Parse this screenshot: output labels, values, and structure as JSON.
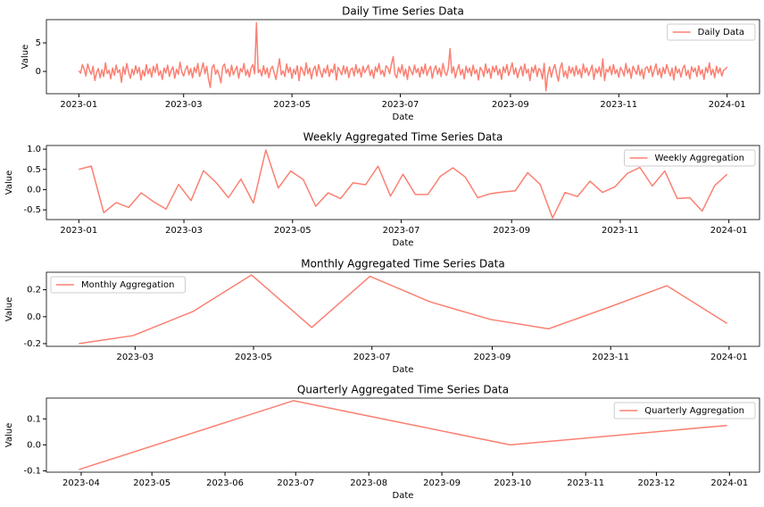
{
  "chart_data": [
    {
      "type": "line",
      "title": "Daily Time Series Data",
      "xlabel": "Date",
      "ylabel": "Value",
      "step": "day",
      "start": "2023-01",
      "xticks": [
        "2023-01",
        "2023-03",
        "2023-05",
        "2023-07",
        "2023-09",
        "2023-11",
        "2024-01"
      ],
      "ylim": [
        -3.9,
        9.06
      ],
      "yticks": [
        0,
        5
      ],
      "legend": "upper right",
      "series": [
        {
          "name": "Daily Data",
          "color": "#fa8072",
          "values": [
            0.1,
            -0.3,
            1.2,
            0.4,
            -0.8,
            1.3,
            0.2,
            -0.5,
            0.9,
            -1.6,
            -0.2,
            0.5,
            -1.1,
            0.3,
            -0.9,
            1.5,
            -0.4,
            0.2,
            -1.3,
            0.6,
            -0.7,
            1.1,
            -0.2,
            0.3,
            -1.9,
            0.8,
            -0.5,
            1.4,
            -0.1,
            -1.2,
            0.4,
            -0.6,
            1.0,
            -0.3,
            0.7,
            -1.5,
            0.2,
            -0.8,
            1.2,
            -0.4,
            0.5,
            -1.0,
            0.9,
            -0.2,
            1.3,
            -0.7,
            0.1,
            -1.4,
            0.6,
            -0.3,
            1.1,
            -0.9,
            0.2,
            0.8,
            -1.2,
            0.4,
            -0.5,
            1.6,
            -0.1,
            -0.8,
            0.3,
            1.0,
            -0.6,
            0.5,
            -1.1,
            0.7,
            -0.2,
            1.4,
            -0.9,
            0.2,
            1.5,
            -0.4,
            0.9,
            -1.3,
            -2.8,
            0.6,
            1.2,
            -0.5,
            0.3,
            -0.7,
            -2.0,
            0.8,
            1.3,
            -0.3,
            0.4,
            -0.9,
            1.1,
            -0.6,
            0.2,
            0.9,
            -1.2,
            0.5,
            -0.1,
            1.4,
            -0.7,
            0.3,
            -1.0,
            0.6,
            1.2,
            -0.4,
            8.5,
            -0.2,
            0.3,
            -0.8,
            1.0,
            -0.5,
            0.6,
            -1.1,
            0.4,
            0.9,
            -0.3,
            -1.4,
            0.5,
            2.2,
            -0.6,
            0.1,
            -0.9,
            1.3,
            -0.2,
            0.7,
            -1.2,
            0.4,
            -0.5,
            1.0,
            -1.6,
            0.8,
            0.2,
            -0.7,
            1.5,
            -0.4,
            0.6,
            -1.3,
            0.3,
            0.9,
            -0.8,
            1.2,
            -0.1,
            -1.0,
            0.5,
            -0.3,
            1.1,
            -0.9,
            0.4,
            -0.2,
            1.3,
            -1.5,
            0.7,
            0.1,
            -0.6,
            1.0,
            -0.4,
            0.8,
            -1.1,
            0.3,
            0.6,
            -0.8,
            1.2,
            -0.3,
            0.5,
            -1.0,
            0.9,
            -0.2,
            0.4,
            1.1,
            -0.7,
            0.3,
            -1.2,
            0.8,
            -0.1,
            1.4,
            -0.5,
            0.2,
            -0.9,
            1.0,
            0.6,
            -0.4,
            1.3,
            2.6,
            -0.6,
            -1.1,
            0.7,
            -0.3,
            1.2,
            -0.8,
            0.4,
            -1.4,
            0.9,
            0.1,
            -0.6,
            1.1,
            -0.2,
            0.5,
            -1.0,
            0.8,
            -0.4,
            1.3,
            -0.7,
            0.2,
            0.9,
            -1.2,
            0.3,
            1.0,
            -0.5,
            0.6,
            -0.9,
            1.4,
            -0.1,
            -0.7,
            0.5,
            4.0,
            -0.3,
            0.8,
            -1.1,
            0.2,
            1.2,
            -0.6,
            0.4,
            -1.3,
            0.9,
            -0.2,
            0.6,
            -0.8,
            1.1,
            -0.4,
            0.3,
            -1.5,
            0.7,
            0.2,
            -0.9,
            1.3,
            -0.3,
            0.5,
            -1.2,
            0.9,
            -0.1,
            1.0,
            -0.6,
            0.4,
            -1.4,
            0.8,
            -0.2,
            1.2,
            -0.7,
            0.3,
            1.5,
            -0.5,
            0.6,
            -1.1,
            0.1,
            0.9,
            -0.8,
            1.3,
            -0.3,
            0.4,
            -1.6,
            0.7,
            -0.2,
            1.1,
            -0.9,
            0.5,
            0.2,
            -1.3,
            1.4,
            -3.4,
            -0.6,
            0.8,
            -1.0,
            0.3,
            1.2,
            -0.4,
            -1.7,
            0.6,
            1.5,
            -0.9,
            0.1,
            -1.2,
            0.9,
            -0.3,
            0.7,
            -0.8,
            1.0,
            -0.5,
            0.4,
            -1.1,
            1.3,
            -0.2,
            0.6,
            -0.7,
            0.2,
            1.1,
            -1.4,
            0.5,
            -0.3,
            0.8,
            -0.9,
            2.2,
            -1.6,
            0.4,
            -0.1,
            0.9,
            -0.6,
            1.2,
            -0.4,
            0.3,
            -1.0,
            0.7,
            0.1,
            -0.8,
            1.4,
            -0.3,
            0.5,
            -1.2,
            0.9,
            0.2,
            -0.5,
            1.1,
            -0.7,
            0.4,
            -1.3,
            0.6,
            0.8,
            -0.2,
            1.0,
            -0.9,
            0.3,
            1.3,
            -0.6,
            0.5,
            -1.1,
            0.7,
            -0.4,
            1.2,
            0.1,
            -0.8,
            0.6,
            -1.5,
            0.9,
            -0.3,
            0.4,
            -1.0,
            0.5,
            1.1,
            -0.7,
            0.2,
            -1.3,
            0.8,
            -0.1,
            0.6,
            -0.9,
            1.0,
            -0.5,
            0.3,
            -1.4,
            0.7,
            -0.2,
            1.5,
            -0.6,
            0.4,
            -1.1,
            0.9,
            -0.3,
            0.6,
            -0.8,
            0.2,
            0.4,
            0.8
          ]
        }
      ]
    },
    {
      "type": "line",
      "title": "Weekly Aggregated Time Series Data",
      "xlabel": "Date",
      "ylabel": "Value",
      "step": "week",
      "start": "2023-01",
      "xticks": [
        "2023-01",
        "2023-03",
        "2023-05",
        "2023-07",
        "2023-09",
        "2023-11",
        "2024-01"
      ],
      "ylim": [
        -0.74,
        1.09
      ],
      "yticks": [
        -0.5,
        {
          "value": 0,
          "label": "0.0"
        },
        0.5,
        {
          "value": 1,
          "label": "1.0"
        }
      ],
      "legend": "upper right",
      "series": [
        {
          "name": "Weekly Aggregation",
          "color": "#fa8072",
          "values": [
            0.5,
            0.58,
            -0.57,
            -0.32,
            -0.44,
            -0.08,
            -0.3,
            -0.48,
            0.13,
            -0.27,
            0.47,
            0.18,
            -0.2,
            0.26,
            -0.33,
            0.98,
            0.04,
            0.46,
            0.25,
            -0.41,
            -0.08,
            -0.22,
            0.17,
            0.12,
            0.58,
            -0.16,
            0.38,
            -0.12,
            -0.12,
            0.33,
            0.54,
            0.31,
            -0.2,
            -0.1,
            -0.06,
            -0.03,
            0.42,
            0.13,
            -0.7,
            -0.07,
            -0.17,
            0.21,
            -0.07,
            0.07,
            0.4,
            0.55,
            0.09,
            0.46,
            -0.22,
            -0.2,
            -0.53,
            0.1,
            0.38
          ]
        }
      ]
    },
    {
      "type": "line",
      "title": "Monthly Aggregated Time Series Data",
      "xlabel": "Date",
      "ylabel": "Value",
      "step": "month-end",
      "x": [
        "2023-01",
        "2023-02",
        "2023-03",
        "2023-04",
        "2023-05",
        "2023-06",
        "2023-07",
        "2023-08",
        "2023-09",
        "2023-10",
        "2023-11",
        "2023-12"
      ],
      "xticks": [
        "2023-03",
        "2023-05",
        "2023-07",
        "2023-09",
        "2023-11",
        "2024-01"
      ],
      "ylim": [
        -0.22,
        0.33
      ],
      "yticks": [
        -0.2,
        {
          "value": 0,
          "label": "0.0"
        },
        0.2
      ],
      "legend": "upper left",
      "series": [
        {
          "name": "Monthly Aggregation",
          "color": "#fa8072",
          "values": [
            -0.2,
            -0.14,
            0.04,
            0.31,
            -0.08,
            0.3,
            0.11,
            -0.02,
            -0.09,
            0.07,
            0.23,
            -0.05
          ]
        }
      ]
    },
    {
      "type": "line",
      "title": "Quarterly Aggregated Time Series Data",
      "xlabel": "Date",
      "ylabel": "Value",
      "step": "month-end",
      "x": [
        "2023-03",
        "2023-06",
        "2023-09",
        "2023-12"
      ],
      "xticks": [
        "2023-04",
        "2023-05",
        "2023-06",
        "2023-07",
        "2023-08",
        "2023-09",
        "2023-10",
        "2023-11",
        "2023-12",
        "2024-01"
      ],
      "ylim": [
        -0.105,
        0.18
      ],
      "yticks": [
        -0.1,
        {
          "value": 0,
          "label": "0.0"
        },
        0.1
      ],
      "legend": "upper right",
      "series": [
        {
          "name": "Quarterly Aggregation",
          "color": "#fa8072",
          "values": [
            -0.095,
            0.17,
            0.0,
            0.075
          ]
        }
      ]
    }
  ]
}
